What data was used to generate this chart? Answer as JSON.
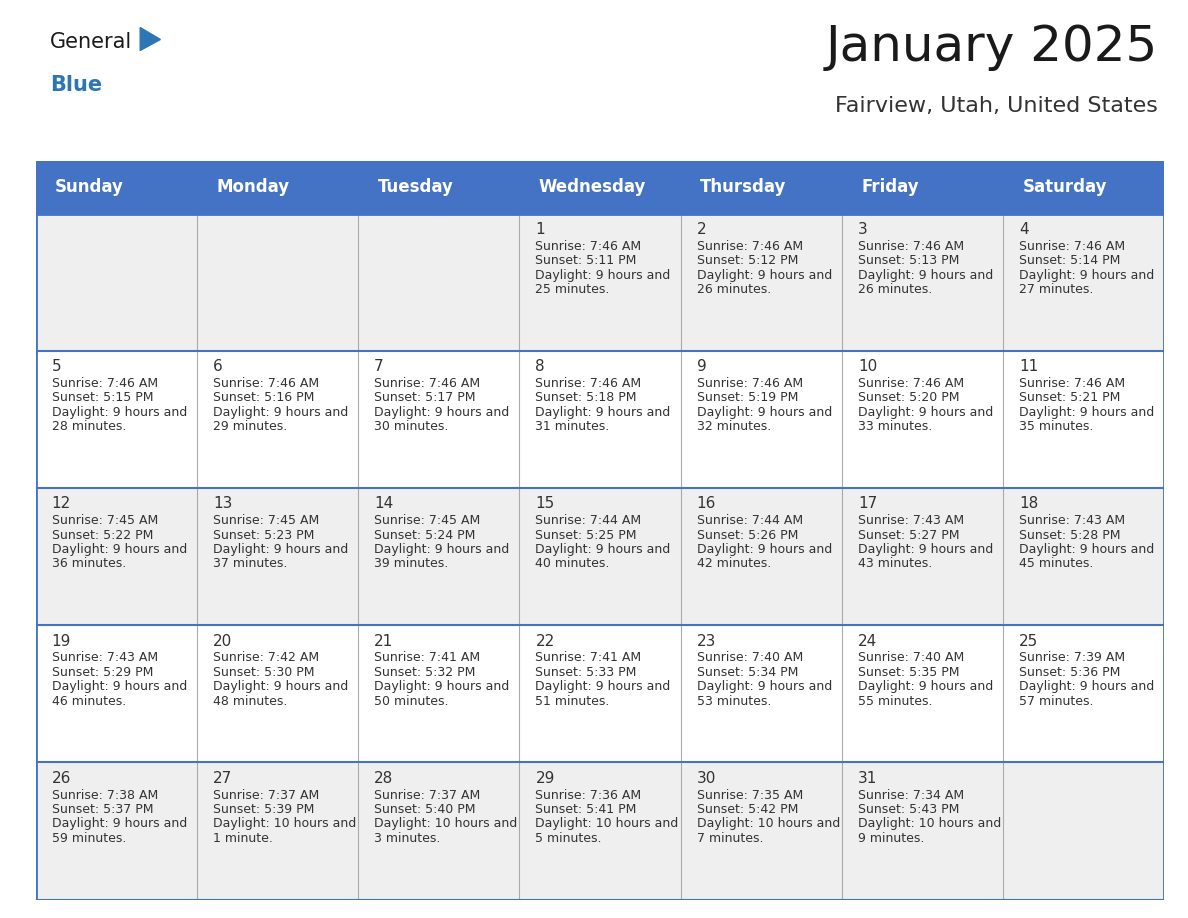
{
  "title": "January 2025",
  "subtitle": "Fairview, Utah, United States",
  "header_bg": "#4472C4",
  "header_text_color": "#FFFFFF",
  "day_names": [
    "Sunday",
    "Monday",
    "Tuesday",
    "Wednesday",
    "Thursday",
    "Friday",
    "Saturday"
  ],
  "row_bg_even": "#EFEFEF",
  "row_bg_odd": "#FFFFFF",
  "border_color": "#4472C4",
  "cell_line_color": "#AAAAAA",
  "title_fontsize": 36,
  "subtitle_fontsize": 16,
  "header_fontsize": 12,
  "day_num_fontsize": 11,
  "cell_fontsize": 9,
  "days": [
    {
      "day": 1,
      "col": 3,
      "row": 0,
      "sunrise": "7:46 AM",
      "sunset": "5:11 PM",
      "daylight_h": "9 hours",
      "daylight_m": "25 minutes"
    },
    {
      "day": 2,
      "col": 4,
      "row": 0,
      "sunrise": "7:46 AM",
      "sunset": "5:12 PM",
      "daylight_h": "9 hours",
      "daylight_m": "26 minutes"
    },
    {
      "day": 3,
      "col": 5,
      "row": 0,
      "sunrise": "7:46 AM",
      "sunset": "5:13 PM",
      "daylight_h": "9 hours",
      "daylight_m": "26 minutes"
    },
    {
      "day": 4,
      "col": 6,
      "row": 0,
      "sunrise": "7:46 AM",
      "sunset": "5:14 PM",
      "daylight_h": "9 hours",
      "daylight_m": "27 minutes"
    },
    {
      "day": 5,
      "col": 0,
      "row": 1,
      "sunrise": "7:46 AM",
      "sunset": "5:15 PM",
      "daylight_h": "9 hours",
      "daylight_m": "28 minutes"
    },
    {
      "day": 6,
      "col": 1,
      "row": 1,
      "sunrise": "7:46 AM",
      "sunset": "5:16 PM",
      "daylight_h": "9 hours",
      "daylight_m": "29 minutes"
    },
    {
      "day": 7,
      "col": 2,
      "row": 1,
      "sunrise": "7:46 AM",
      "sunset": "5:17 PM",
      "daylight_h": "9 hours",
      "daylight_m": "30 minutes"
    },
    {
      "day": 8,
      "col": 3,
      "row": 1,
      "sunrise": "7:46 AM",
      "sunset": "5:18 PM",
      "daylight_h": "9 hours",
      "daylight_m": "31 minutes"
    },
    {
      "day": 9,
      "col": 4,
      "row": 1,
      "sunrise": "7:46 AM",
      "sunset": "5:19 PM",
      "daylight_h": "9 hours",
      "daylight_m": "32 minutes"
    },
    {
      "day": 10,
      "col": 5,
      "row": 1,
      "sunrise": "7:46 AM",
      "sunset": "5:20 PM",
      "daylight_h": "9 hours",
      "daylight_m": "33 minutes"
    },
    {
      "day": 11,
      "col": 6,
      "row": 1,
      "sunrise": "7:46 AM",
      "sunset": "5:21 PM",
      "daylight_h": "9 hours",
      "daylight_m": "35 minutes"
    },
    {
      "day": 12,
      "col": 0,
      "row": 2,
      "sunrise": "7:45 AM",
      "sunset": "5:22 PM",
      "daylight_h": "9 hours",
      "daylight_m": "36 minutes"
    },
    {
      "day": 13,
      "col": 1,
      "row": 2,
      "sunrise": "7:45 AM",
      "sunset": "5:23 PM",
      "daylight_h": "9 hours",
      "daylight_m": "37 minutes"
    },
    {
      "day": 14,
      "col": 2,
      "row": 2,
      "sunrise": "7:45 AM",
      "sunset": "5:24 PM",
      "daylight_h": "9 hours",
      "daylight_m": "39 minutes"
    },
    {
      "day": 15,
      "col": 3,
      "row": 2,
      "sunrise": "7:44 AM",
      "sunset": "5:25 PM",
      "daylight_h": "9 hours",
      "daylight_m": "40 minutes"
    },
    {
      "day": 16,
      "col": 4,
      "row": 2,
      "sunrise": "7:44 AM",
      "sunset": "5:26 PM",
      "daylight_h": "9 hours",
      "daylight_m": "42 minutes"
    },
    {
      "day": 17,
      "col": 5,
      "row": 2,
      "sunrise": "7:43 AM",
      "sunset": "5:27 PM",
      "daylight_h": "9 hours",
      "daylight_m": "43 minutes"
    },
    {
      "day": 18,
      "col": 6,
      "row": 2,
      "sunrise": "7:43 AM",
      "sunset": "5:28 PM",
      "daylight_h": "9 hours",
      "daylight_m": "45 minutes"
    },
    {
      "day": 19,
      "col": 0,
      "row": 3,
      "sunrise": "7:43 AM",
      "sunset": "5:29 PM",
      "daylight_h": "9 hours",
      "daylight_m": "46 minutes"
    },
    {
      "day": 20,
      "col": 1,
      "row": 3,
      "sunrise": "7:42 AM",
      "sunset": "5:30 PM",
      "daylight_h": "9 hours",
      "daylight_m": "48 minutes"
    },
    {
      "day": 21,
      "col": 2,
      "row": 3,
      "sunrise": "7:41 AM",
      "sunset": "5:32 PM",
      "daylight_h": "9 hours",
      "daylight_m": "50 minutes"
    },
    {
      "day": 22,
      "col": 3,
      "row": 3,
      "sunrise": "7:41 AM",
      "sunset": "5:33 PM",
      "daylight_h": "9 hours",
      "daylight_m": "51 minutes"
    },
    {
      "day": 23,
      "col": 4,
      "row": 3,
      "sunrise": "7:40 AM",
      "sunset": "5:34 PM",
      "daylight_h": "9 hours",
      "daylight_m": "53 minutes"
    },
    {
      "day": 24,
      "col": 5,
      "row": 3,
      "sunrise": "7:40 AM",
      "sunset": "5:35 PM",
      "daylight_h": "9 hours",
      "daylight_m": "55 minutes"
    },
    {
      "day": 25,
      "col": 6,
      "row": 3,
      "sunrise": "7:39 AM",
      "sunset": "5:36 PM",
      "daylight_h": "9 hours",
      "daylight_m": "57 minutes"
    },
    {
      "day": 26,
      "col": 0,
      "row": 4,
      "sunrise": "7:38 AM",
      "sunset": "5:37 PM",
      "daylight_h": "9 hours",
      "daylight_m": "59 minutes"
    },
    {
      "day": 27,
      "col": 1,
      "row": 4,
      "sunrise": "7:37 AM",
      "sunset": "5:39 PM",
      "daylight_h": "10 hours",
      "daylight_m": "1 minute"
    },
    {
      "day": 28,
      "col": 2,
      "row": 4,
      "sunrise": "7:37 AM",
      "sunset": "5:40 PM",
      "daylight_h": "10 hours",
      "daylight_m": "3 minutes"
    },
    {
      "day": 29,
      "col": 3,
      "row": 4,
      "sunrise": "7:36 AM",
      "sunset": "5:41 PM",
      "daylight_h": "10 hours",
      "daylight_m": "5 minutes"
    },
    {
      "day": 30,
      "col": 4,
      "row": 4,
      "sunrise": "7:35 AM",
      "sunset": "5:42 PM",
      "daylight_h": "10 hours",
      "daylight_m": "7 minutes"
    },
    {
      "day": 31,
      "col": 5,
      "row": 4,
      "sunrise": "7:34 AM",
      "sunset": "5:43 PM",
      "daylight_h": "10 hours",
      "daylight_m": "9 minutes"
    }
  ]
}
